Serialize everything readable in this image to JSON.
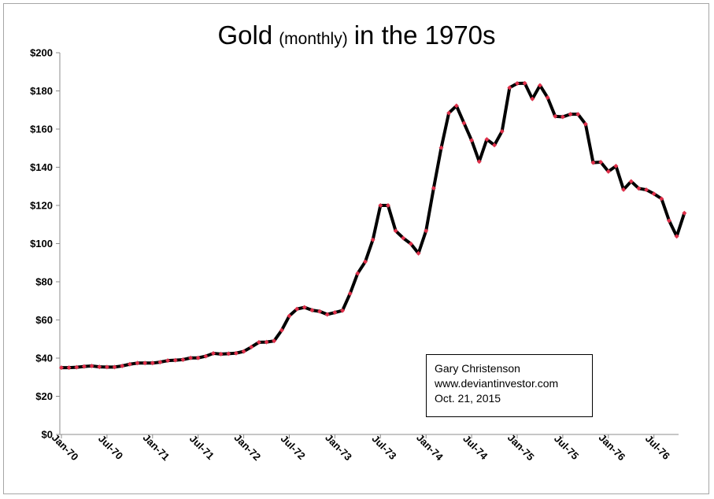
{
  "chart_data": {
    "type": "line",
    "title": "Gold",
    "title_qualifier": "(monthly)",
    "title_suffix": "in the 1970s",
    "xlabel": "",
    "ylabel": "",
    "ylim": [
      0,
      200
    ],
    "y_ticks": [
      "$0",
      "$20",
      "$40",
      "$60",
      "$80",
      "$100",
      "$120",
      "$140",
      "$160",
      "$180",
      "$200"
    ],
    "x_tick_labels": [
      "Jan-70",
      "Jul-70",
      "Jan-71",
      "Jul-71",
      "Jan-72",
      "Jul-72",
      "Jan-73",
      "Jul-73",
      "Jan-74",
      "Jul-74",
      "Jan-75",
      "Jul-75",
      "Jan-76",
      "Jul-76"
    ],
    "grid": false,
    "legend": "none",
    "line_color": "#000000",
    "marker_color": "#e0304a",
    "series": [
      {
        "start": "Jan-70",
        "frequency": "monthly",
        "values": [
          35.0,
          35.0,
          35.2,
          35.6,
          35.9,
          35.4,
          35.3,
          35.3,
          35.9,
          36.8,
          37.4,
          37.4,
          37.4,
          37.9,
          38.7,
          38.9,
          39.2,
          40.1,
          40.1,
          41.0,
          42.5,
          42.1,
          42.3,
          42.6,
          43.5,
          45.8,
          48.3,
          48.4,
          49.0,
          54.6,
          62.1,
          65.7,
          66.6,
          65.1,
          64.5,
          62.9,
          63.9,
          64.9,
          73.8,
          84.4,
          90.5,
          102.0,
          120.0,
          120.0,
          106.7,
          102.9,
          99.9,
          94.9,
          106.7,
          129.0,
          150.2,
          168.4,
          172.2,
          163.1,
          154.1,
          143.0,
          154.6,
          151.6,
          158.8,
          181.7,
          183.9,
          184.0,
          175.8,
          182.9,
          176.5,
          166.7,
          166.4,
          167.8,
          167.8,
          162.6,
          142.4,
          142.7,
          137.8,
          140.6,
          128.3,
          132.6,
          128.9,
          128.2,
          126.1,
          123.5,
          112.0,
          103.8,
          116.0
        ]
      }
    ]
  },
  "annotation": {
    "author": "Gary Christenson",
    "website": "www.deviantinvestor.com",
    "date": "Oct. 21, 2015"
  }
}
